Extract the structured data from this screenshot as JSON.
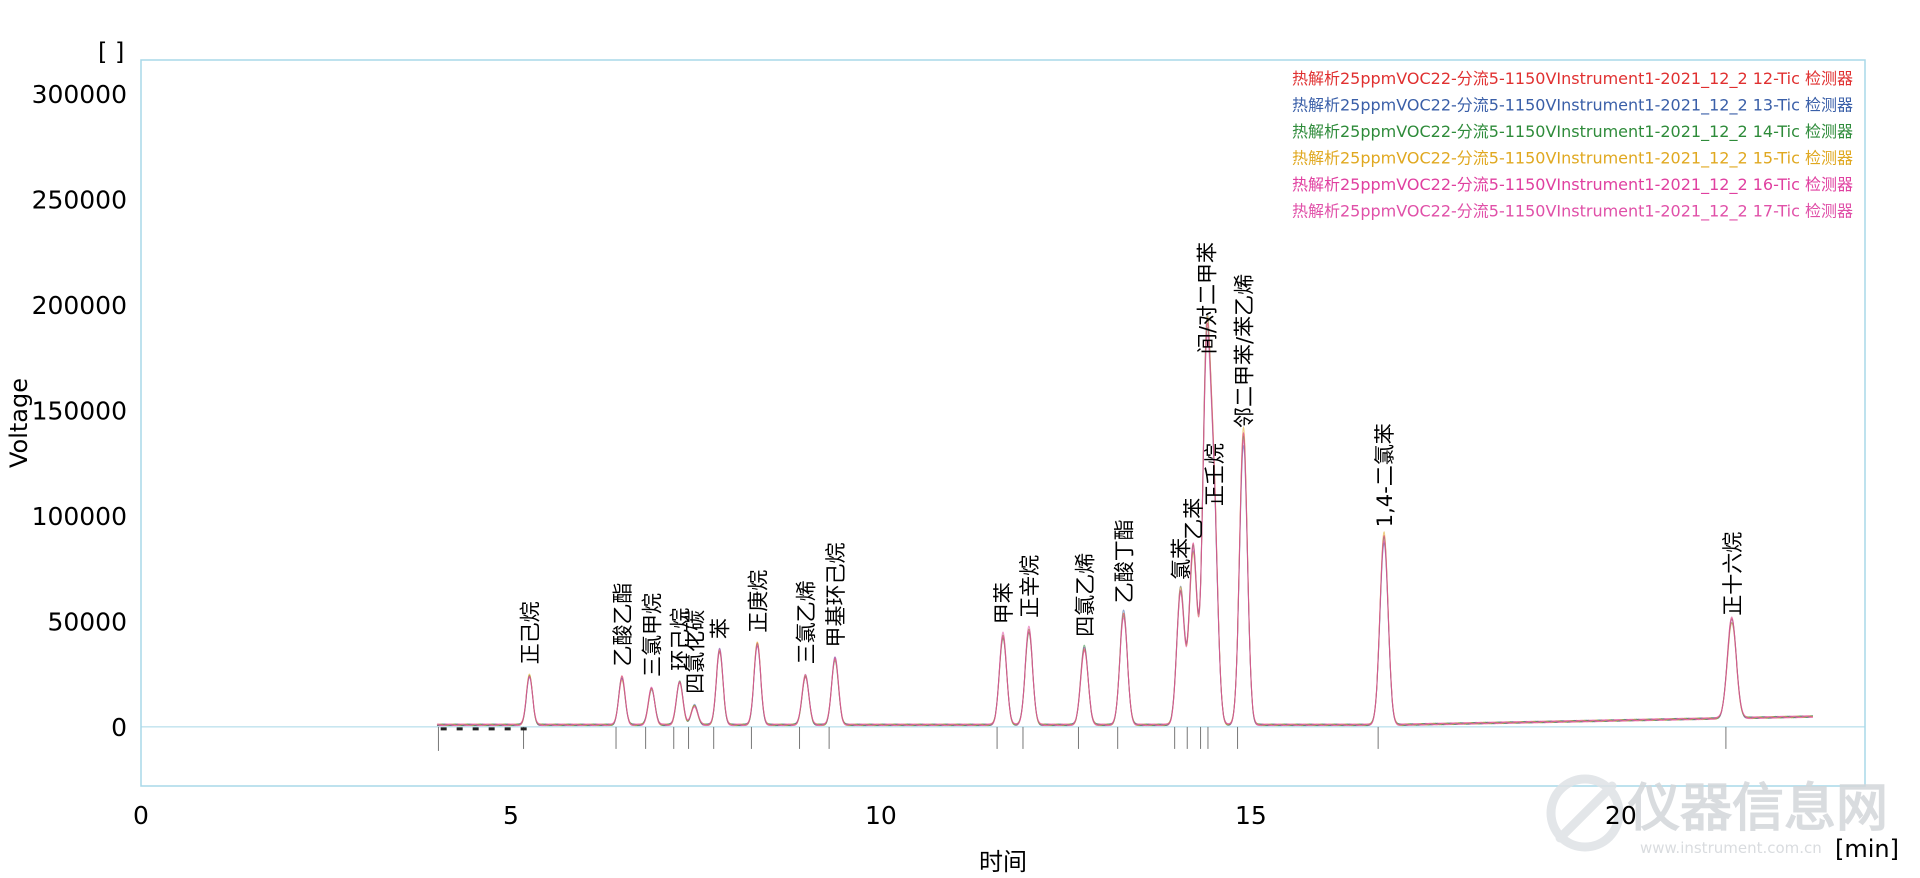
{
  "chart_data": {
    "type": "line",
    "ylabel": "Voltage",
    "xlabel": "时间",
    "y_unit": "[ ]",
    "x_unit": "[min]",
    "xlim": [
      0,
      23.3
    ],
    "ylim": [
      -28000,
      316000
    ],
    "x_ticks": [
      0,
      5,
      10,
      15,
      20
    ],
    "y_ticks": [
      0,
      50000,
      100000,
      150000,
      200000,
      250000,
      300000
    ],
    "grid": false,
    "legend_position": "top-right",
    "series": [
      {
        "name": "热解析25ppmVOC22-分流5-1150VInstrument1-2021_12_2 12-Tic 检测器",
        "color": "#e03030"
      },
      {
        "name": "热解析25ppmVOC22-分流5-1150VInstrument1-2021_12_2 13-Tic 检测器",
        "color": "#3a5fa8"
      },
      {
        "name": "热解析25ppmVOC22-分流5-1150VInstrument1-2021_12_2 14-Tic 检测器",
        "color": "#2e8b3a"
      },
      {
        "name": "热解析25ppmVOC22-分流5-1150VInstrument1-2021_12_2 15-Tic 检测器",
        "color": "#e0a820"
      },
      {
        "name": "热解析25ppmVOC22-分流5-1150VInstrument1-2021_12_2 16-Tic 检测器",
        "color": "#e040a0"
      },
      {
        "name": "热解析25ppmVOC22-分流5-1150VInstrument1-2021_12_2 17-Tic 检测器",
        "color": "#e050a8"
      }
    ],
    "peaks": [
      {
        "name": "正己烷",
        "rt": 5.25,
        "height": 23000
      },
      {
        "name": "乙酸乙酯",
        "rt": 6.5,
        "height": 22000
      },
      {
        "name": "三氯甲烷",
        "rt": 6.9,
        "height": 17000
      },
      {
        "name": "环己烷",
        "rt": 7.28,
        "height": 20000
      },
      {
        "name": "四氯化碳",
        "rt": 7.48,
        "height": 9000
      },
      {
        "name": "苯",
        "rt": 7.82,
        "height": 35000
      },
      {
        "name": "正庚烷",
        "rt": 8.33,
        "height": 38000
      },
      {
        "name": "三氯乙烯",
        "rt": 8.98,
        "height": 23000
      },
      {
        "name": "甲基环己烷",
        "rt": 9.38,
        "height": 31000
      },
      {
        "name": "甲苯",
        "rt": 11.65,
        "height": 42000
      },
      {
        "name": "正辛烷",
        "rt": 12.0,
        "height": 45000
      },
      {
        "name": "四氯乙烯",
        "rt": 12.75,
        "height": 36000
      },
      {
        "name": "乙酸丁酯",
        "rt": 13.28,
        "height": 52000
      },
      {
        "name": "氯苯",
        "rt": 14.05,
        "height": 63000
      },
      {
        "name": "乙苯",
        "rt": 14.22,
        "height": 82000
      },
      {
        "name": "间/对二甲苯",
        "rt": 14.4,
        "height": 170000
      },
      {
        "name": "正壬烷",
        "rt": 14.5,
        "height": 98000
      },
      {
        "name": "邻二甲苯/苯乙烯",
        "rt": 14.9,
        "height": 135000
      },
      {
        "name": "1,4-二氯苯",
        "rt": 16.8,
        "height": 88000
      },
      {
        "name": "正十六烷",
        "rt": 21.5,
        "height": 46000
      }
    ]
  },
  "watermark": {
    "text": "仪器信息网",
    "url_text": "www.instrument.com.cn"
  }
}
